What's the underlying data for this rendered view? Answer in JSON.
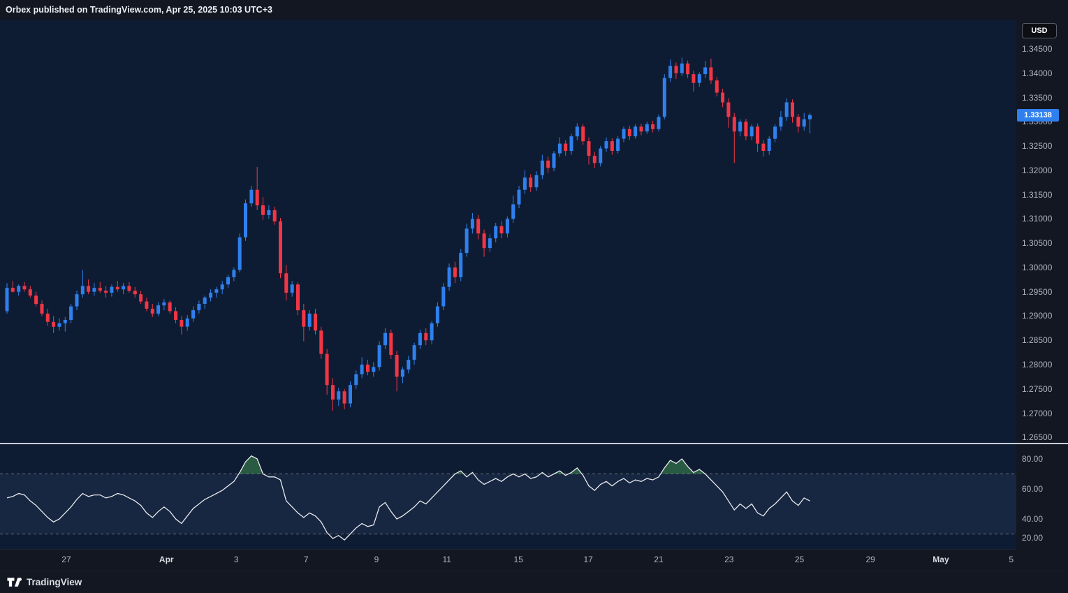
{
  "header": {
    "attribution": "Orbex published on TradingView.com, Apr 25, 2025 10:03 UTC+3"
  },
  "toolbar": {
    "currency_label": "USD"
  },
  "footer": {
    "brand": "TradingView"
  },
  "price_axis": {
    "ticks": [
      "1.34500",
      "1.34000",
      "1.33500",
      "1.33000",
      "1.32500",
      "1.32000",
      "1.31500",
      "1.31000",
      "1.30500",
      "1.30000",
      "1.29500",
      "1.29000",
      "1.28500",
      "1.28000",
      "1.27500",
      "1.27000",
      "1.26500"
    ],
    "last_price_label": "1.33138",
    "last_price_color": "#2f80ed"
  },
  "time_axis": {
    "ticks": [
      {
        "label": "27",
        "i": 10.2
      },
      {
        "label": "Apr",
        "i": 27.4,
        "major": true
      },
      {
        "label": "3",
        "i": 39.4
      },
      {
        "label": "7",
        "i": 51.4
      },
      {
        "label": "9",
        "i": 63.5
      },
      {
        "label": "11",
        "i": 75.6
      },
      {
        "label": "15",
        "i": 87.9
      },
      {
        "label": "17",
        "i": 99.9
      },
      {
        "label": "21",
        "i": 112.0
      },
      {
        "label": "23",
        "i": 124.1
      },
      {
        "label": "25",
        "i": 136.2
      },
      {
        "label": "29",
        "i": 148.4
      },
      {
        "label": "May",
        "i": 160.5,
        "major": true
      },
      {
        "label": "5",
        "i": 172.6
      }
    ]
  },
  "chart_data": {
    "type": "candlestick",
    "timeframe_hint": "4h",
    "up_color": "#2f80ed",
    "down_color": "#f23645",
    "price_tick_step": 0.005,
    "visible_price_range": [
      1.2638,
      1.351
    ],
    "last_price": 1.33138,
    "candles": [
      [
        1.291,
        1.2968,
        1.2905,
        1.2958
      ],
      [
        1.2958,
        1.2972,
        1.2948,
        1.295
      ],
      [
        1.295,
        1.2965,
        1.2942,
        1.2962
      ],
      [
        1.2962,
        1.297,
        1.295,
        1.2955
      ],
      [
        1.2955,
        1.2962,
        1.2938,
        1.2942
      ],
      [
        1.2942,
        1.295,
        1.292,
        1.2925
      ],
      [
        1.2925,
        1.2932,
        1.29,
        1.2905
      ],
      [
        1.2905,
        1.2915,
        1.288,
        1.2888
      ],
      [
        1.2888,
        1.29,
        1.2865,
        1.2878
      ],
      [
        1.2878,
        1.2895,
        1.287,
        1.2885
      ],
      [
        1.2885,
        1.2898,
        1.2868,
        1.2892
      ],
      [
        1.2892,
        1.2925,
        1.2885,
        1.292
      ],
      [
        1.292,
        1.2952,
        1.2912,
        1.2945
      ],
      [
        1.2945,
        1.2995,
        1.2938,
        1.2962
      ],
      [
        1.2962,
        1.2975,
        1.2945,
        1.295
      ],
      [
        1.295,
        1.2968,
        1.2942,
        1.2958
      ],
      [
        1.2958,
        1.297,
        1.2948,
        1.2952
      ],
      [
        1.2952,
        1.2962,
        1.2938,
        1.2948
      ],
      [
        1.2948,
        1.2965,
        1.294,
        1.296
      ],
      [
        1.296,
        1.2972,
        1.295,
        1.2955
      ],
      [
        1.2955,
        1.2968,
        1.2945,
        1.2962
      ],
      [
        1.2962,
        1.297,
        1.2948,
        1.2952
      ],
      [
        1.2952,
        1.296,
        1.2938,
        1.2945
      ],
      [
        1.2945,
        1.2952,
        1.2925,
        1.293
      ],
      [
        1.293,
        1.2938,
        1.291,
        1.2915
      ],
      [
        1.2915,
        1.2925,
        1.2898,
        1.2905
      ],
      [
        1.2905,
        1.2928,
        1.29,
        1.2922
      ],
      [
        1.2922,
        1.2935,
        1.2912,
        1.2928
      ],
      [
        1.2928,
        1.2932,
        1.2905,
        1.291
      ],
      [
        1.291,
        1.2918,
        1.2885,
        1.2892
      ],
      [
        1.2892,
        1.29,
        1.2862,
        1.2878
      ],
      [
        1.2878,
        1.2902,
        1.287,
        1.2895
      ],
      [
        1.2895,
        1.292,
        1.2888,
        1.2912
      ],
      [
        1.2912,
        1.2932,
        1.2905,
        1.2925
      ],
      [
        1.2925,
        1.2942,
        1.2915,
        1.2938
      ],
      [
        1.2938,
        1.2955,
        1.293,
        1.2948
      ],
      [
        1.2948,
        1.296,
        1.2938,
        1.2955
      ],
      [
        1.2955,
        1.2972,
        1.2945,
        1.2965
      ],
      [
        1.2965,
        1.2985,
        1.2958,
        1.298
      ],
      [
        1.298,
        1.3,
        1.2972,
        1.2995
      ],
      [
        1.2995,
        1.307,
        1.299,
        1.3062
      ],
      [
        1.3062,
        1.314,
        1.3055,
        1.3132
      ],
      [
        1.3132,
        1.3168,
        1.3125,
        1.316
      ],
      [
        1.316,
        1.3207,
        1.3118,
        1.3128
      ],
      [
        1.3128,
        1.3145,
        1.3098,
        1.3108
      ],
      [
        1.3108,
        1.3128,
        1.31,
        1.3118
      ],
      [
        1.3118,
        1.3125,
        1.3088,
        1.3095
      ],
      [
        1.3095,
        1.3102,
        1.2978,
        1.2988
      ],
      [
        1.2988,
        1.3005,
        1.2932,
        1.2948
      ],
      [
        1.2948,
        1.2972,
        1.294,
        1.2965
      ],
      [
        1.2965,
        1.297,
        1.2902,
        1.2912
      ],
      [
        1.2912,
        1.2925,
        1.2848,
        1.2878
      ],
      [
        1.2878,
        1.2912,
        1.287,
        1.2905
      ],
      [
        1.2905,
        1.2915,
        1.2862,
        1.287
      ],
      [
        1.287,
        1.2878,
        1.2812,
        1.2822
      ],
      [
        1.2822,
        1.2832,
        1.2738,
        1.2758
      ],
      [
        1.2758,
        1.2772,
        1.2705,
        1.2728
      ],
      [
        1.2728,
        1.2752,
        1.2715,
        1.2745
      ],
      [
        1.2745,
        1.275,
        1.2708,
        1.272
      ],
      [
        1.272,
        1.2765,
        1.2712,
        1.2758
      ],
      [
        1.2758,
        1.2788,
        1.275,
        1.278
      ],
      [
        1.278,
        1.2815,
        1.2772,
        1.28
      ],
      [
        1.28,
        1.281,
        1.2778,
        1.2785
      ],
      [
        1.2785,
        1.2805,
        1.2775,
        1.2795
      ],
      [
        1.2795,
        1.2848,
        1.2788,
        1.284
      ],
      [
        1.284,
        1.2875,
        1.2832,
        1.2865
      ],
      [
        1.2865,
        1.2872,
        1.2812,
        1.282
      ],
      [
        1.282,
        1.2828,
        1.2745,
        1.2775
      ],
      [
        1.2775,
        1.2795,
        1.2762,
        1.279
      ],
      [
        1.279,
        1.2818,
        1.2782,
        1.281
      ],
      [
        1.281,
        1.2845,
        1.28,
        1.284
      ],
      [
        1.284,
        1.2872,
        1.2832,
        1.2865
      ],
      [
        1.2865,
        1.2875,
        1.284,
        1.285
      ],
      [
        1.285,
        1.289,
        1.2842,
        1.2885
      ],
      [
        1.2885,
        1.2928,
        1.2878,
        1.292
      ],
      [
        1.292,
        1.2968,
        1.2912,
        1.296
      ],
      [
        1.296,
        1.3008,
        1.2952,
        1.3
      ],
      [
        1.3,
        1.3012,
        1.2968,
        1.298
      ],
      [
        1.298,
        1.3038,
        1.2972,
        1.303
      ],
      [
        1.303,
        1.309,
        1.3022,
        1.308
      ],
      [
        1.308,
        1.3112,
        1.307,
        1.31
      ],
      [
        1.31,
        1.3108,
        1.3058,
        1.307
      ],
      [
        1.307,
        1.3078,
        1.3022,
        1.304
      ],
      [
        1.304,
        1.3068,
        1.3032,
        1.306
      ],
      [
        1.306,
        1.3092,
        1.3052,
        1.3085
      ],
      [
        1.3085,
        1.3095,
        1.306,
        1.307
      ],
      [
        1.307,
        1.3105,
        1.3062,
        1.31
      ],
      [
        1.31,
        1.3148,
        1.3092,
        1.313
      ],
      [
        1.313,
        1.3168,
        1.3122,
        1.316
      ],
      [
        1.316,
        1.32,
        1.3152,
        1.3185
      ],
      [
        1.3185,
        1.3192,
        1.3155,
        1.3165
      ],
      [
        1.3165,
        1.3198,
        1.3158,
        1.319
      ],
      [
        1.319,
        1.3232,
        1.3182,
        1.322
      ],
      [
        1.322,
        1.3228,
        1.3195,
        1.3205
      ],
      [
        1.3205,
        1.324,
        1.3198,
        1.3235
      ],
      [
        1.3235,
        1.3268,
        1.3228,
        1.3255
      ],
      [
        1.3255,
        1.3262,
        1.323,
        1.324
      ],
      [
        1.324,
        1.3275,
        1.3232,
        1.327
      ],
      [
        1.327,
        1.3297,
        1.3262,
        1.329
      ],
      [
        1.329,
        1.3295,
        1.3252,
        1.326
      ],
      [
        1.326,
        1.3268,
        1.3212,
        1.323
      ],
      [
        1.323,
        1.3238,
        1.3205,
        1.3215
      ],
      [
        1.3215,
        1.325,
        1.3208,
        1.3245
      ],
      [
        1.3245,
        1.3268,
        1.3238,
        1.326
      ],
      [
        1.326,
        1.3266,
        1.3232,
        1.324
      ],
      [
        1.324,
        1.327,
        1.3235,
        1.3265
      ],
      [
        1.3265,
        1.329,
        1.3258,
        1.3285
      ],
      [
        1.3285,
        1.3292,
        1.3262,
        1.327
      ],
      [
        1.327,
        1.3295,
        1.3265,
        1.329
      ],
      [
        1.329,
        1.3296,
        1.3272,
        1.328
      ],
      [
        1.328,
        1.33,
        1.3275,
        1.3295
      ],
      [
        1.3295,
        1.3302,
        1.3278,
        1.3285
      ],
      [
        1.3285,
        1.3315,
        1.328,
        1.331
      ],
      [
        1.331,
        1.3398,
        1.3305,
        1.339
      ],
      [
        1.339,
        1.3428,
        1.3382,
        1.3415
      ],
      [
        1.3415,
        1.3422,
        1.3388,
        1.34
      ],
      [
        1.34,
        1.3432,
        1.3394,
        1.342
      ],
      [
        1.342,
        1.3426,
        1.339,
        1.3398
      ],
      [
        1.3398,
        1.3405,
        1.3362,
        1.338
      ],
      [
        1.338,
        1.3402,
        1.3372,
        1.3398
      ],
      [
        1.3398,
        1.3425,
        1.339,
        1.3412
      ],
      [
        1.3412,
        1.343,
        1.3378,
        1.3385
      ],
      [
        1.3385,
        1.3392,
        1.3352,
        1.336
      ],
      [
        1.336,
        1.3368,
        1.333,
        1.334
      ],
      [
        1.334,
        1.3348,
        1.3288,
        1.331
      ],
      [
        1.331,
        1.3318,
        1.3215,
        1.328
      ],
      [
        1.328,
        1.3305,
        1.327,
        1.33
      ],
      [
        1.33,
        1.3306,
        1.3262,
        1.327
      ],
      [
        1.327,
        1.3295,
        1.3262,
        1.329
      ],
      [
        1.329,
        1.3296,
        1.3238,
        1.3255
      ],
      [
        1.3255,
        1.3262,
        1.3228,
        1.324
      ],
      [
        1.324,
        1.327,
        1.3232,
        1.3265
      ],
      [
        1.3265,
        1.3295,
        1.3258,
        1.329
      ],
      [
        1.329,
        1.3322,
        1.3282,
        1.331
      ],
      [
        1.331,
        1.3348,
        1.3302,
        1.334
      ],
      [
        1.334,
        1.3346,
        1.3298,
        1.331
      ],
      [
        1.331,
        1.3316,
        1.3278,
        1.329
      ],
      [
        1.329,
        1.3318,
        1.3282,
        1.3305
      ],
      [
        1.3305,
        1.3318,
        1.3276,
        1.33138
      ]
    ],
    "indicator": {
      "name": "RSI",
      "type": "line",
      "line_color": "#e9eaec",
      "overbought_level": 70,
      "oversold_level": 30,
      "overbought_fill": "#3f8f4f",
      "axis_ticks": [
        {
          "label": "80.00",
          "value": 80
        },
        {
          "label": "60.00",
          "value": 60
        },
        {
          "label": "40.00",
          "value": 40
        },
        {
          "label": "20.00",
          "value": 20
        }
      ],
      "values": [
        54,
        55,
        57,
        56,
        52,
        49,
        45,
        41,
        38,
        40,
        44,
        48,
        53,
        57,
        55,
        56,
        56,
        54,
        55,
        57,
        56,
        54,
        52,
        49,
        44,
        41,
        45,
        48,
        45,
        40,
        37,
        42,
        47,
        50,
        53,
        55,
        57,
        59,
        62,
        65,
        71,
        78,
        82,
        80,
        70,
        68,
        68,
        66,
        52,
        48,
        44,
        41,
        44,
        42,
        38,
        31,
        27,
        29,
        26,
        30,
        34,
        37,
        35,
        36,
        48,
        51,
        45,
        40,
        42,
        45,
        48,
        52,
        50,
        54,
        58,
        62,
        66,
        70,
        72,
        68,
        71,
        66,
        63,
        65,
        67,
        65,
        68,
        70,
        68,
        70,
        67,
        68,
        71,
        68,
        70,
        72,
        69,
        71,
        74,
        69,
        62,
        59,
        63,
        65,
        62,
        65,
        67,
        64,
        66,
        65,
        67,
        66,
        68,
        74,
        79,
        77,
        80,
        75,
        71,
        73,
        70,
        66,
        62,
        58,
        52,
        46,
        50,
        47,
        50,
        44,
        42,
        47,
        50,
        54,
        58,
        52,
        49,
        54,
        52
      ]
    }
  }
}
